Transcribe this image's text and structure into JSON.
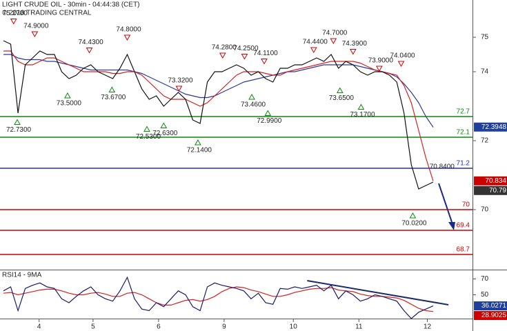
{
  "chart_data": [
    {
      "type": "line",
      "title": "LIGHT CRUDE OIL - 30min - 04:44:38 (CET)",
      "subtitle": "© 2018 TRADING CENTRAL",
      "xlim": [
        -0.47,
        64.4
      ],
      "ylim": [
        68.28,
        76.08
      ],
      "yticks": [
        75,
        74,
        72,
        70
      ],
      "x": [
        0,
        1,
        2,
        3,
        4,
        5,
        6,
        7,
        8,
        9,
        10,
        11,
        12,
        13,
        14,
        15,
        16,
        17,
        18,
        19,
        20,
        21,
        22,
        23,
        24,
        25,
        26,
        27,
        28,
        29,
        30,
        31,
        32,
        33,
        34,
        35,
        36,
        37,
        38,
        39,
        40,
        41,
        42,
        43,
        44,
        45,
        46,
        47,
        48,
        49,
        50,
        51,
        52,
        53,
        54,
        55,
        56,
        57,
        58,
        59
      ],
      "series": [
        {
          "color": "#2a3a9a",
          "values": [
            74.5,
            74.5,
            74.4,
            74.35,
            74.35,
            74.35,
            74.3,
            74.3,
            74.25,
            74.2,
            74.15,
            74.1,
            74.05,
            74.05,
            74.05,
            74.05,
            74.05,
            74.05,
            74.0,
            73.95,
            73.85,
            73.75,
            73.65,
            73.55,
            73.45,
            73.35,
            73.3,
            73.25,
            73.25,
            73.3,
            73.4,
            73.5,
            73.6,
            73.7,
            73.75,
            73.8,
            73.85,
            73.9,
            73.95,
            74.0,
            74.0,
            74.05,
            74.1,
            74.15,
            74.2,
            74.2,
            74.2,
            74.2,
            74.2,
            74.15,
            74.1,
            74.05,
            74.0,
            73.95,
            73.85,
            73.65,
            73.4,
            73.1,
            72.7,
            72.39
          ]
        },
        {
          "color": "#d42020",
          "values": [
            74.6,
            74.6,
            74.3,
            74.2,
            74.2,
            74.3,
            74.4,
            74.4,
            74.3,
            74.2,
            74.1,
            74.0,
            74.0,
            74.0,
            74.0,
            73.95,
            73.95,
            74.0,
            74.0,
            73.9,
            73.7,
            73.5,
            73.3,
            73.2,
            73.2,
            73.2,
            73.1,
            73.0,
            73.1,
            73.3,
            73.5,
            73.7,
            73.9,
            74.0,
            74.0,
            74.0,
            73.95,
            73.9,
            73.9,
            74.0,
            74.05,
            74.1,
            74.15,
            74.2,
            74.25,
            74.3,
            74.3,
            74.3,
            74.3,
            74.25,
            74.15,
            74.05,
            74.0,
            73.95,
            73.9,
            73.6,
            73.1,
            72.3,
            71.5,
            70.83
          ]
        },
        {
          "color": "#111111",
          "values": [
            74.9,
            74.8,
            72.8,
            74.2,
            74.4,
            74.6,
            74.5,
            74.5,
            74.0,
            73.8,
            73.9,
            74.1,
            74.2,
            74.0,
            73.9,
            73.8,
            74.1,
            74.5,
            74.0,
            73.5,
            73.2,
            73.3,
            73.0,
            73.2,
            73.4,
            73.2,
            72.6,
            72.5,
            73.7,
            74.0,
            74.0,
            74.1,
            74.2,
            74.1,
            73.9,
            74.0,
            73.8,
            73.7,
            74.1,
            74.1,
            74.2,
            74.2,
            74.3,
            74.4,
            74.3,
            74.5,
            74.1,
            74.3,
            74.2,
            74.0,
            73.9,
            74.0,
            74.0,
            73.9,
            73.7,
            72.8,
            71.3,
            70.6,
            70.7,
            70.8
          ]
        }
      ],
      "levels": [
        {
          "value": 72.7,
          "color": "#0a8a0a"
        },
        {
          "value": 72.1,
          "color": "#0a8a0a"
        },
        {
          "value": 71.2,
          "color": "#1f2fbf"
        },
        {
          "value": 70,
          "color": "#cc0000"
        },
        {
          "value": 69.4,
          "color": "#cc0000"
        },
        {
          "value": 68.7,
          "color": "#cc0000"
        }
      ],
      "highs": [
        {
          "x": 1.4,
          "value": 75.27,
          "label": "75.2700"
        },
        {
          "x": 4.3,
          "value": 74.9,
          "label": "74.9000"
        },
        {
          "x": 11.8,
          "value": 74.43,
          "label": "74.4300"
        },
        {
          "x": 17.0,
          "value": 74.8,
          "label": "74.8000"
        },
        {
          "x": 24.1,
          "value": 73.32,
          "label": "73.3200"
        },
        {
          "x": 30.1,
          "value": 74.28,
          "label": "74.2800"
        },
        {
          "x": 33.1,
          "value": 74.25,
          "label": "74.2500"
        },
        {
          "x": 35.8,
          "value": 74.11,
          "label": "74.1100"
        },
        {
          "x": 42.6,
          "value": 74.44,
          "label": "74.4400"
        },
        {
          "x": 45.3,
          "value": 74.7,
          "label": "74.7000"
        },
        {
          "x": 48.0,
          "value": 74.39,
          "label": "74.3900"
        },
        {
          "x": 51.6,
          "value": 73.9,
          "label": "73.9000"
        },
        {
          "x": 54.6,
          "value": 74.04,
          "label": "74.0400"
        }
      ],
      "lows": [
        {
          "x": 1.9,
          "value": 72.73,
          "label": "72.7300"
        },
        {
          "x": 8.8,
          "value": 73.5,
          "label": "73.5000"
        },
        {
          "x": 14.9,
          "value": 73.67,
          "label": "73.6700"
        },
        {
          "x": 19.7,
          "value": 72.53,
          "label": "72.5300"
        },
        {
          "x": 22.0,
          "value": 72.63,
          "label": "72.6300"
        },
        {
          "x": 26.7,
          "value": 72.14,
          "label": "72.1400"
        },
        {
          "x": 34.1,
          "value": 73.46,
          "label": "73.4600"
        },
        {
          "x": 36.3,
          "value": 72.99,
          "label": "72.9900"
        },
        {
          "x": 46.2,
          "value": 73.65,
          "label": "73.6500"
        },
        {
          "x": 49.1,
          "value": 73.17,
          "label": "73.1700"
        },
        {
          "x": 56.2,
          "value": 70.02,
          "label": "70.0200"
        }
      ],
      "notes": [
        {
          "x": 58.5,
          "value": 70.84,
          "label": "70.8400"
        }
      ],
      "value_boxes": [
        {
          "value": 72.3948,
          "color": "#1f3f9f"
        },
        {
          "value": 70.834,
          "color": "#cc0000"
        },
        {
          "value": 70.79,
          "color": "#333333"
        }
      ]
    },
    {
      "type": "line",
      "title": "RSI14 - 9MA",
      "xlim": [
        -0.47,
        64.4
      ],
      "ylim": [
        20,
        80
      ],
      "yticks": [
        70,
        50
      ],
      "xticks": [
        {
          "value": 4.9,
          "label": "4"
        },
        {
          "value": 12.3,
          "label": "5"
        },
        {
          "value": 21.3,
          "label": "6"
        },
        {
          "value": 30.3,
          "label": "9"
        },
        {
          "value": 39.8,
          "label": "10"
        },
        {
          "value": 48.8,
          "label": "11"
        },
        {
          "value": 58.2,
          "label": "12"
        }
      ],
      "x": [
        0,
        1,
        2,
        3,
        4,
        5,
        6,
        7,
        8,
        9,
        10,
        11,
        12,
        13,
        14,
        15,
        16,
        17,
        18,
        19,
        20,
        21,
        22,
        23,
        24,
        25,
        26,
        27,
        28,
        29,
        30,
        31,
        32,
        33,
        34,
        35,
        36,
        37,
        38,
        39,
        40,
        41,
        42,
        43,
        44,
        45,
        46,
        47,
        48,
        49,
        50,
        51,
        52,
        53,
        54,
        55,
        56,
        57,
        58,
        59
      ],
      "series": [
        {
          "color": "#d42020",
          "values": [
            52,
            53,
            50,
            52,
            54,
            56,
            57,
            57,
            55,
            52,
            50,
            50,
            52,
            53,
            51,
            48,
            48,
            52,
            53,
            50,
            45,
            40,
            37,
            37,
            40,
            43,
            44,
            42,
            44,
            48,
            54,
            58,
            60,
            59,
            56,
            54,
            51,
            48,
            48,
            50,
            53,
            55,
            57,
            58,
            58,
            59,
            56,
            55,
            54,
            51,
            49,
            48,
            48,
            47,
            46,
            43,
            38,
            33,
            30,
            28.9
          ]
        },
        {
          "color": "#1a1a6a",
          "values": [
            55,
            60,
            30,
            58,
            62,
            65,
            60,
            58,
            45,
            40,
            48,
            55,
            60,
            50,
            45,
            42,
            55,
            72,
            45,
            32,
            30,
            40,
            35,
            45,
            55,
            50,
            35,
            30,
            60,
            65,
            62,
            60,
            58,
            55,
            45,
            52,
            40,
            38,
            58,
            57,
            60,
            58,
            60,
            62,
            55,
            62,
            45,
            55,
            50,
            42,
            45,
            50,
            48,
            45,
            42,
            30,
            20,
            28,
            32,
            36.03
          ]
        }
      ],
      "trendline": {
        "x": [
          41.7,
          61.1
        ],
        "values": [
          67.8,
          37.4
        ],
        "color": "#1a2a6a"
      },
      "value_boxes": [
        {
          "value": 36.0271,
          "color": "#1f3f9f"
        },
        {
          "value": 28.9025,
          "color": "#cc0000"
        }
      ]
    }
  ]
}
